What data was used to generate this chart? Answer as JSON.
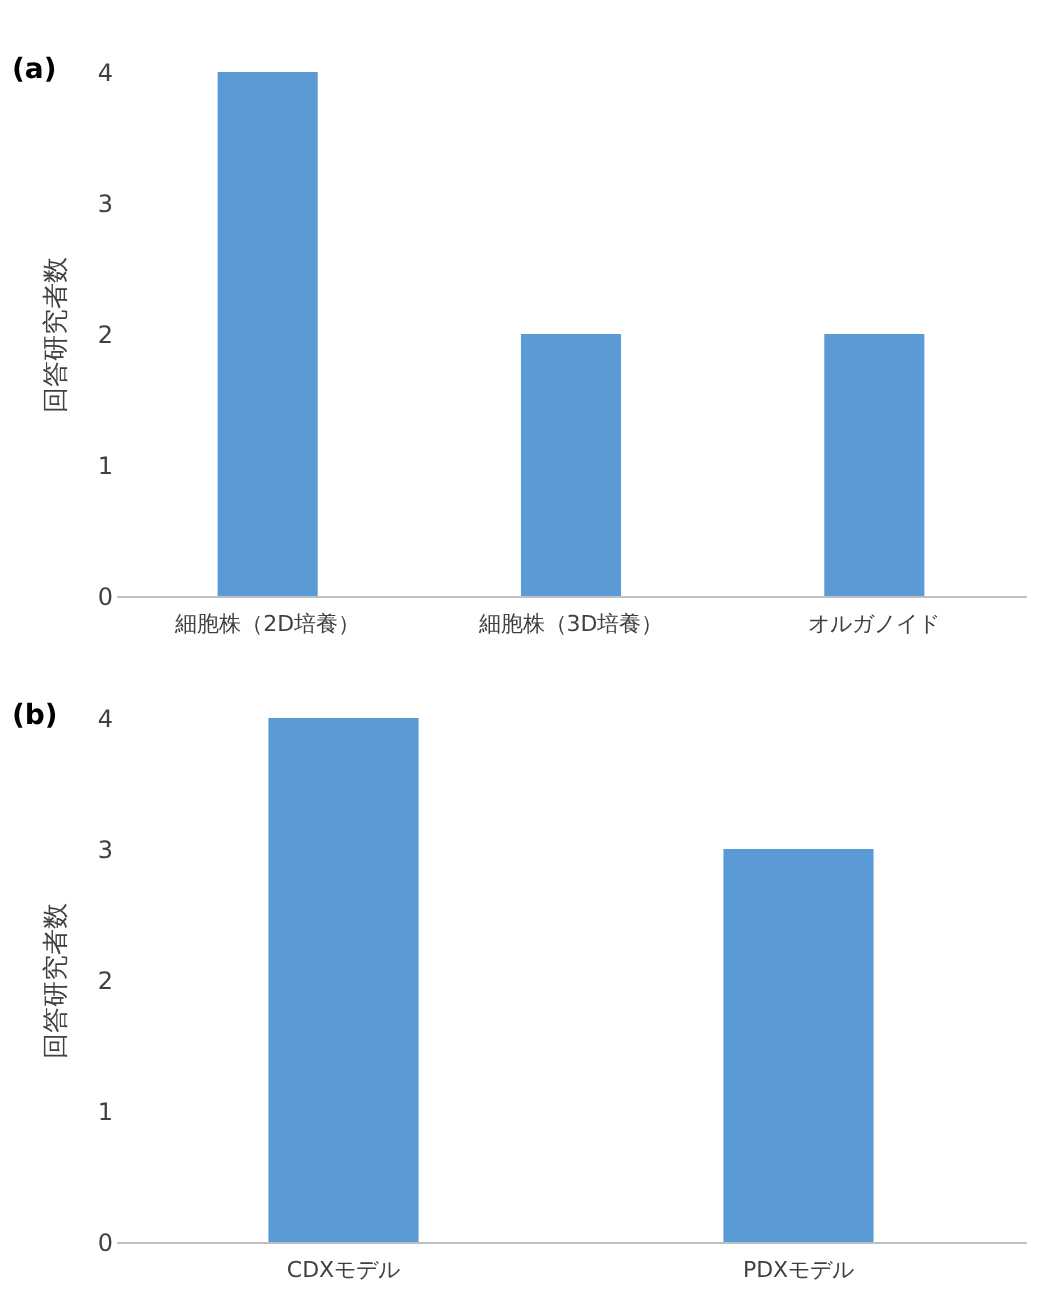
{
  "chart_data": [
    {
      "type": "bar",
      "title": "(a)",
      "ylabel": "回答研究者数",
      "categories": [
        "細胞株（2D培養）",
        "細胞株（3D培養）",
        "オルガノイド"
      ],
      "values": [
        4,
        2,
        2
      ],
      "color": "#5b9bd5",
      "ylim": [
        0,
        4
      ],
      "yticks": [
        0,
        1,
        2,
        3,
        4
      ]
    },
    {
      "type": "bar",
      "title": "(b)",
      "ylabel": "回答研究者数",
      "categories": [
        "CDXモデル",
        "PDXモデル"
      ],
      "values": [
        4,
        3
      ],
      "color": "#5b9bd5",
      "ylim": [
        0,
        4
      ],
      "yticks": [
        0,
        1,
        2,
        3,
        4
      ]
    }
  ]
}
